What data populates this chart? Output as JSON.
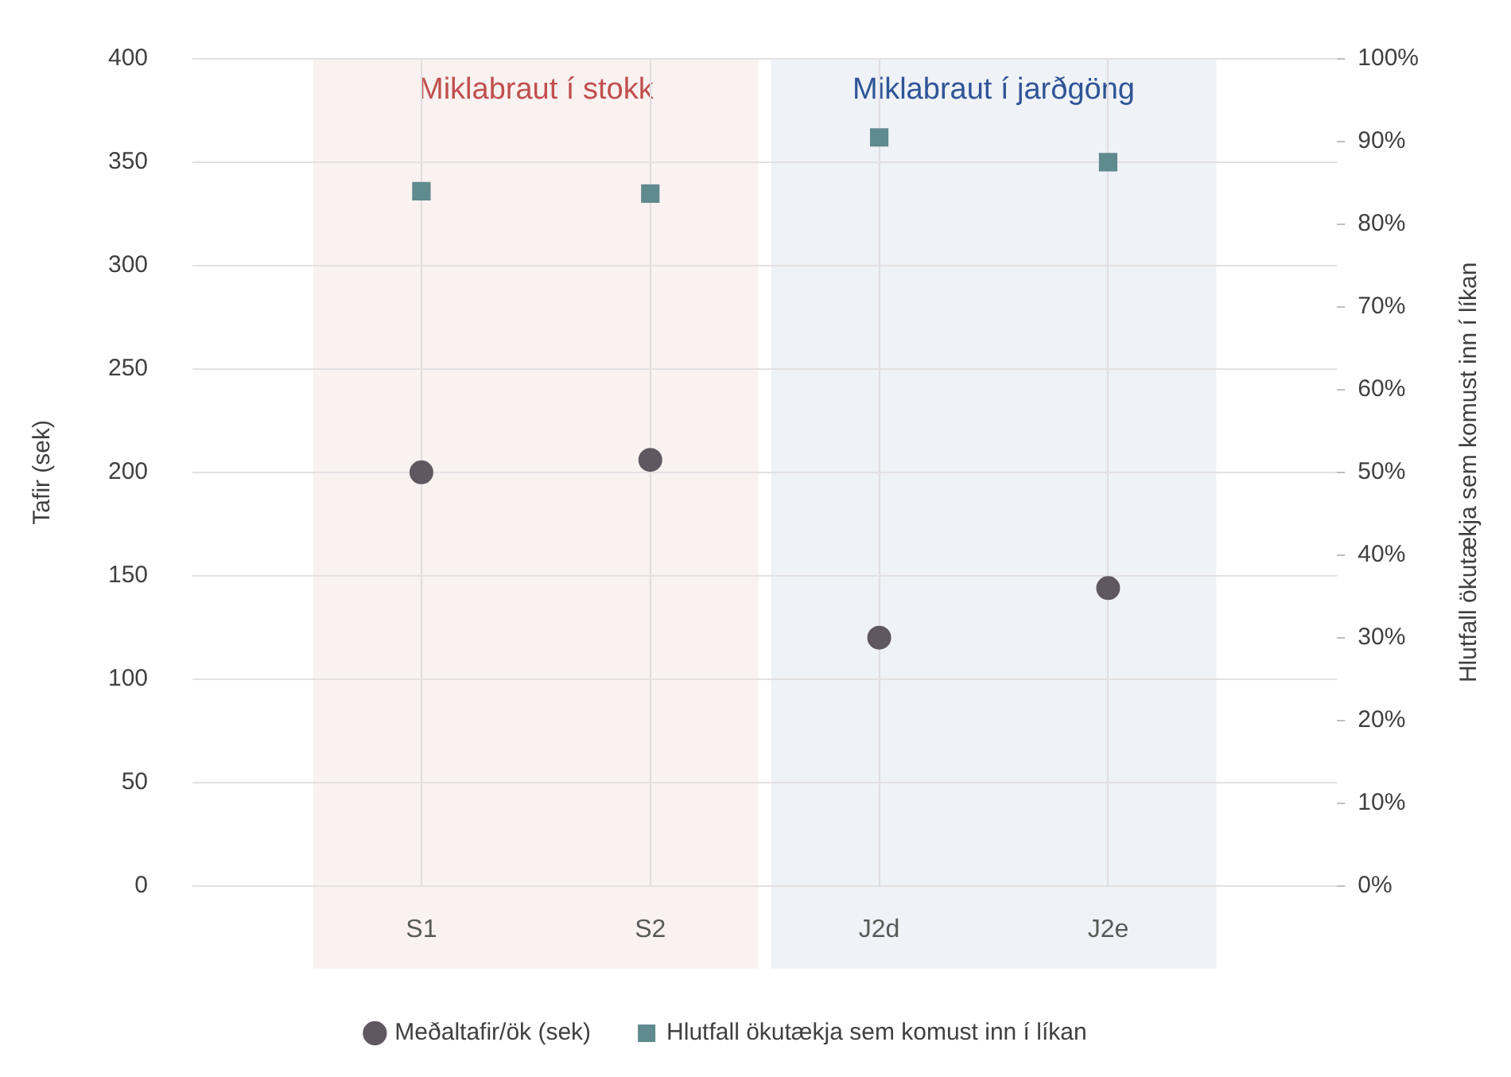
{
  "chart_data": {
    "type": "scatter",
    "ylabel": "Tafir (sek)",
    "y2label": "Hlutfall ökutækja sem komust inn í líkan",
    "categories": [
      null,
      "S1",
      "S2",
      "J2d",
      "J2e",
      null
    ],
    "ylim": [
      0,
      400
    ],
    "yticks": [
      0,
      50,
      100,
      150,
      200,
      250,
      300,
      350,
      400
    ],
    "y2lim": [
      0,
      100
    ],
    "y2ticks": [
      {
        "value": 0,
        "label": "0%"
      },
      {
        "value": 10,
        "label": "10%"
      },
      {
        "value": 20,
        "label": "20%"
      },
      {
        "value": 30,
        "label": "30%"
      },
      {
        "value": 40,
        "label": "40%"
      },
      {
        "value": 50,
        "label": "50%"
      },
      {
        "value": 60,
        "label": "60%"
      },
      {
        "value": 70,
        "label": "70%"
      },
      {
        "value": 80,
        "label": "80%"
      },
      {
        "value": 90,
        "label": "90%"
      },
      {
        "value": 100,
        "label": "100%"
      }
    ],
    "series": [
      {
        "name": "Meðaltafir/ök (sek)",
        "color": "#5f5860",
        "marker": "circle",
        "values": [
          null,
          200,
          206,
          120,
          144,
          null
        ]
      },
      {
        "name": "Hlutfall ökutækja sem komust inn í líkan",
        "color": "#5f8a8e",
        "marker": "square",
        "axis": "y2",
        "values": [
          null,
          84,
          83.7,
          90.5,
          87.5,
          null
        ]
      }
    ],
    "bands": [
      {
        "axis": "x",
        "from": "S1",
        "to": "S2",
        "label": "Miklabraut í stokk",
        "color": "#c0504d"
      },
      {
        "axis": "x",
        "from": "J2d",
        "to": "J2e",
        "label": "Miklabraut í jarðgöng",
        "color": "#2f5597"
      }
    ],
    "grid": true,
    "legend": "bottom"
  }
}
